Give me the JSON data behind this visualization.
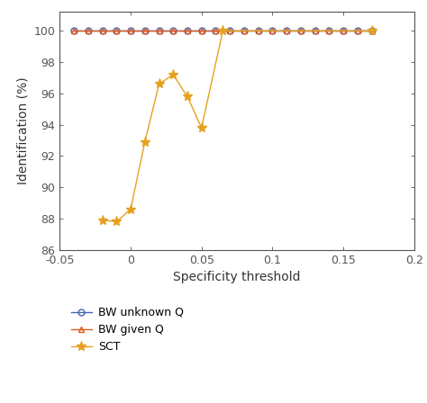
{
  "xlabel": "Specificity threshold",
  "ylabel": "Identification (%)",
  "xlim": [
    -0.05,
    0.2
  ],
  "ylim": [
    86,
    101.2
  ],
  "yticks": [
    86,
    88,
    90,
    92,
    94,
    96,
    98,
    100
  ],
  "xticks": [
    -0.05,
    0.0,
    0.05,
    0.1,
    0.15,
    0.2
  ],
  "xticklabels": [
    "-0.05",
    "0",
    "0.05",
    "0.1",
    "0.15",
    "0.2"
  ],
  "bw_unknown_x": [
    -0.04,
    -0.03,
    -0.02,
    -0.01,
    0.0,
    0.01,
    0.02,
    0.03,
    0.04,
    0.05,
    0.06,
    0.07,
    0.08,
    0.09,
    0.1,
    0.11,
    0.12,
    0.13,
    0.14,
    0.15,
    0.16,
    0.17
  ],
  "bw_unknown_y": [
    100,
    100,
    100,
    100,
    100,
    100,
    100,
    100,
    100,
    100,
    100,
    100,
    100,
    100,
    100,
    100,
    100,
    100,
    100,
    100,
    100,
    100
  ],
  "bw_given_x": [
    -0.04,
    -0.03,
    -0.02,
    -0.01,
    0.0,
    0.01,
    0.02,
    0.03,
    0.04,
    0.05,
    0.06,
    0.07,
    0.08,
    0.09,
    0.1,
    0.11,
    0.12,
    0.13,
    0.14,
    0.15,
    0.16,
    0.17
  ],
  "bw_given_y": [
    100,
    100,
    100,
    100,
    100,
    100,
    100,
    100,
    100,
    100,
    100,
    100,
    100,
    100,
    100,
    100,
    100,
    100,
    100,
    100,
    100,
    100
  ],
  "sct_x": [
    -0.02,
    -0.01,
    0.0,
    0.01,
    0.02,
    0.03,
    0.04,
    0.05,
    0.065,
    0.17
  ],
  "sct_y": [
    87.9,
    87.8,
    88.6,
    92.9,
    96.6,
    97.2,
    95.8,
    93.8,
    100.0,
    100.0
  ],
  "color_bw_unknown": "#4169B0",
  "color_bw_given": "#E05A20",
  "color_sct": "#E6A020",
  "spine_color": "#555555",
  "legend_labels": [
    "BW unknown Q",
    "BW given Q",
    "SCT"
  ],
  "background_color": "#FFFFFF",
  "font_size_ticks": 9,
  "font_size_labels": 10,
  "font_size_legend": 9
}
